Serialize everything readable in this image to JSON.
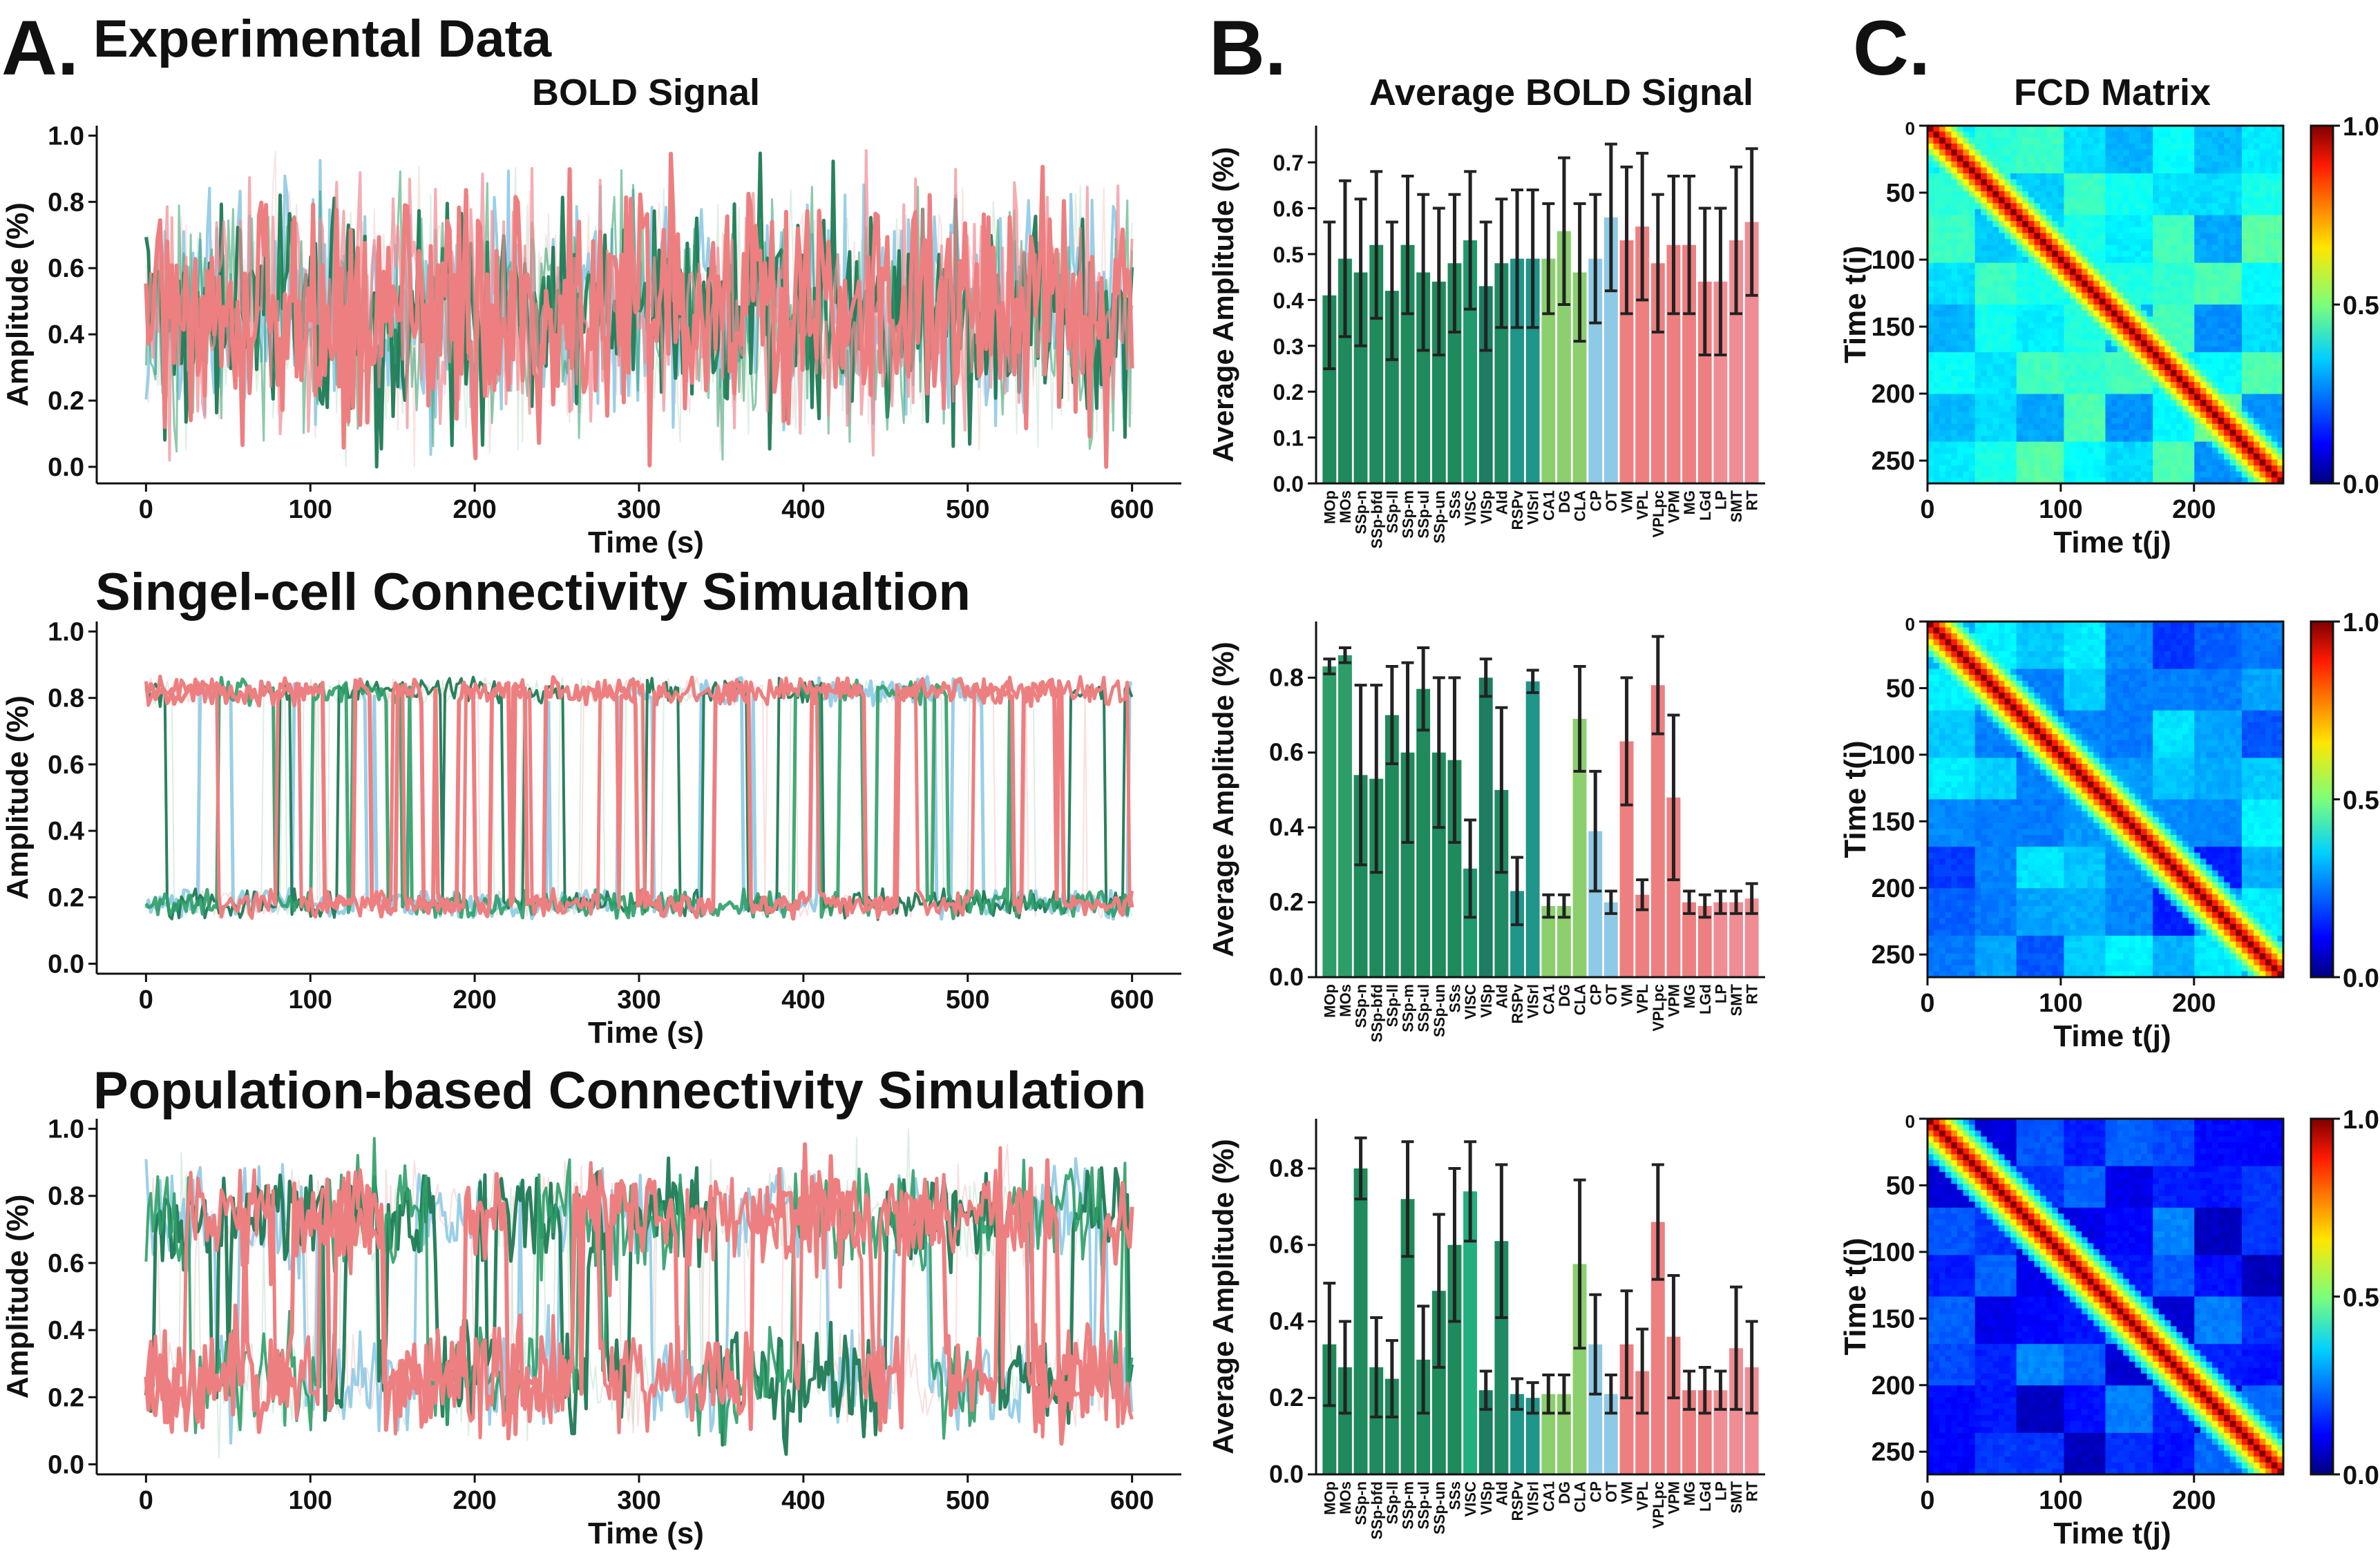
{
  "panel_letters": {
    "a": "A.",
    "b": "B.",
    "c": "C."
  },
  "row_titles": [
    "Experimental Data",
    "Singel-cell Connectivity Simualtion",
    "Population-based Connectivity Simulation"
  ],
  "column_titles": {
    "bold": "BOLD Signal",
    "avg": "Average BOLD Signal",
    "fcd": "FCD Matrix"
  },
  "colors": {
    "dark_green": "#1d7a55",
    "green": "#2e9e68",
    "teal": "#20958a",
    "light_green": "#8ccf6e",
    "light_blue": "#8ecae6",
    "salmon": "#ee7f80",
    "pink": "#f08c93"
  },
  "chart_data": [
    {
      "type": "line",
      "panel": "A",
      "row": 0,
      "title": "BOLD Signal",
      "xlabel": "Time (s)",
      "ylabel": "Amplitude (%)",
      "xlim": [
        -30,
        630
      ],
      "ylim": [
        -0.05,
        1.03
      ],
      "xticks": [
        0,
        100,
        200,
        300,
        400,
        500,
        600
      ],
      "yticks": [
        0.0,
        0.2,
        0.4,
        0.6,
        0.8,
        1.0
      ],
      "signal_model": {
        "kind": "noisy",
        "center": 0.47,
        "spread": 0.16,
        "low": 0.0,
        "high": 1.0
      },
      "series": [
        {
          "color": "#f4c0c0",
          "opacity": 0.45,
          "width": 2
        },
        {
          "color": "#bfe0cc",
          "opacity": 0.5,
          "width": 2
        },
        {
          "color": "#8ecae6",
          "opacity": 0.9,
          "width": 4
        },
        {
          "color": "#1d7a55",
          "opacity": 0.95,
          "width": 5
        },
        {
          "color": "#2e9e68",
          "opacity": 0.55,
          "width": 3
        },
        {
          "color": "#f08c93",
          "opacity": 0.7,
          "width": 4
        },
        {
          "color": "#ee7f80",
          "opacity": 1.0,
          "width": 6
        }
      ]
    },
    {
      "type": "bar",
      "panel": "B",
      "row": 0,
      "title": "Average BOLD Signal",
      "ylabel": "Average Amplitude (%)",
      "ylim": [
        0,
        0.78
      ],
      "yticks": [
        0.0,
        0.1,
        0.2,
        0.3,
        0.4,
        0.5,
        0.6,
        0.7
      ],
      "categories": [
        "MOp",
        "MOs",
        "SSp-n",
        "SSp-bfd",
        "SSp-ll",
        "SSp-m",
        "SSp-ul",
        "SSp-un",
        "SSs",
        "VISC",
        "VISp",
        "AId",
        "RSPv",
        "VISrl",
        "CA1",
        "DG",
        "CLA",
        "CP",
        "OT",
        "VM",
        "VPL",
        "VPLpc",
        "VPM",
        "MG",
        "LGd",
        "LP",
        "SMT",
        "RT"
      ],
      "values": [
        0.41,
        0.49,
        0.46,
        0.52,
        0.42,
        0.52,
        0.46,
        0.44,
        0.48,
        0.53,
        0.43,
        0.48,
        0.49,
        0.49,
        0.49,
        0.55,
        0.46,
        0.49,
        0.58,
        0.53,
        0.56,
        0.48,
        0.52,
        0.52,
        0.44,
        0.44,
        0.53,
        0.57
      ],
      "errors": [
        0.16,
        0.17,
        0.16,
        0.16,
        0.15,
        0.15,
        0.17,
        0.16,
        0.15,
        0.15,
        0.14,
        0.14,
        0.15,
        0.15,
        0.12,
        0.16,
        0.15,
        0.14,
        0.16,
        0.16,
        0.16,
        0.15,
        0.15,
        0.15,
        0.16,
        0.16,
        0.16,
        0.16
      ],
      "colors": [
        "#1f8a5b",
        "#1f8a5b",
        "#1f8a5b",
        "#1f8a5b",
        "#1f8a5b",
        "#1f8a5b",
        "#1f8a5b",
        "#1f8a5b",
        "#1f8a5b",
        "#1e9a6c",
        "#1d7d61",
        "#1f8a63",
        "#20958a",
        "#20958a",
        "#8ccf6e",
        "#8ccf6e",
        "#8ccf6e",
        "#8ecae6",
        "#8ecae6",
        "#ee7f80",
        "#ee7f80",
        "#ee7f80",
        "#ee7f80",
        "#ee7f80",
        "#ee7f80",
        "#f08c93",
        "#f08c93",
        "#f08c93"
      ]
    },
    {
      "type": "heatmap",
      "panel": "C",
      "row": 0,
      "title": "FCD Matrix",
      "xlabel": "Time t(j)",
      "ylabel": "Time t(i)",
      "xlim": [
        0,
        267
      ],
      "ylim": [
        267,
        0
      ],
      "xticks": [
        0,
        100,
        200
      ],
      "yticks": [
        0,
        50,
        100,
        150,
        200,
        250
      ],
      "colorbar": {
        "min": 0.0,
        "max": 1.0,
        "ticks": [
          "0.0",
          "0.5",
          "1.0"
        ],
        "colormap": "jet"
      },
      "off_diagonal_level": 0.36
    },
    {
      "type": "line",
      "panel": "A",
      "row": 1,
      "title": "Singel-cell Connectivity Simualtion",
      "xlabel": "Time (s)",
      "ylabel": "Amplitude (%)",
      "xlim": [
        -30,
        630
      ],
      "ylim": [
        -0.03,
        1.03
      ],
      "xticks": [
        0,
        100,
        200,
        300,
        400,
        500,
        600
      ],
      "yticks": [
        0.0,
        0.2,
        0.4,
        0.6,
        0.8,
        1.0
      ],
      "signal_model": {
        "kind": "bistable",
        "high_level": 0.82,
        "low_level": 0.18,
        "spread": 0.03,
        "low": 0.0,
        "high": 1.0
      },
      "series": [
        {
          "color": "#f4c0c0",
          "opacity": 0.5,
          "width": 2
        },
        {
          "color": "#bfe0cc",
          "opacity": 0.55,
          "width": 2
        },
        {
          "color": "#8ecae6",
          "opacity": 0.9,
          "width": 5
        },
        {
          "color": "#1d7a55",
          "opacity": 0.95,
          "width": 4
        },
        {
          "color": "#2e9e68",
          "opacity": 0.9,
          "width": 5
        },
        {
          "color": "#ee7f80",
          "opacity": 1.0,
          "width": 6
        },
        {
          "color": "#ee7f80",
          "opacity": 1.0,
          "width": 5
        }
      ]
    },
    {
      "type": "bar",
      "panel": "B",
      "row": 1,
      "ylabel": "Average Amplitude (%)",
      "ylim": [
        0,
        0.95
      ],
      "yticks": [
        0.0,
        0.2,
        0.4,
        0.6,
        0.8
      ],
      "categories": [
        "MOp",
        "MOs",
        "SSp-n",
        "SSp-bfd",
        "SSp-ll",
        "SSp-m",
        "SSp-ul",
        "SSp-un",
        "SSs",
        "VISC",
        "VISp",
        "AId",
        "RSPv",
        "VISrl",
        "CA1",
        "DG",
        "CLA",
        "CP",
        "OT",
        "VM",
        "VPL",
        "VPLpc",
        "VPM",
        "MG",
        "LGd",
        "LP",
        "SMT",
        "RT"
      ],
      "values": [
        0.83,
        0.86,
        0.54,
        0.53,
        0.7,
        0.6,
        0.77,
        0.6,
        0.58,
        0.29,
        0.8,
        0.5,
        0.23,
        0.79,
        0.19,
        0.19,
        0.69,
        0.39,
        0.2,
        0.63,
        0.22,
        0.78,
        0.48,
        0.2,
        0.19,
        0.2,
        0.2,
        0.21
      ],
      "errors": [
        0.02,
        0.02,
        0.24,
        0.25,
        0.13,
        0.24,
        0.11,
        0.2,
        0.22,
        0.13,
        0.05,
        0.22,
        0.09,
        0.03,
        0.03,
        0.03,
        0.14,
        0.16,
        0.03,
        0.17,
        0.04,
        0.13,
        0.22,
        0.03,
        0.03,
        0.03,
        0.03,
        0.04
      ],
      "colors": [
        "#2e9e68",
        "#2e9e68",
        "#1f8a5b",
        "#1f8a5b",
        "#1f8a5b",
        "#1f8a5b",
        "#1f8a5b",
        "#1f8a5b",
        "#1f8a5b",
        "#1e9a6c",
        "#1d7d61",
        "#1f8a63",
        "#20958a",
        "#20958a",
        "#8ccf6e",
        "#8ccf6e",
        "#8ccf6e",
        "#8ecae6",
        "#8ecae6",
        "#ee7f80",
        "#ee7f80",
        "#ee7f80",
        "#ee7f80",
        "#ee7f80",
        "#ee7f80",
        "#f08c93",
        "#f08c93",
        "#f08c93"
      ]
    },
    {
      "type": "heatmap",
      "panel": "C",
      "row": 1,
      "xlabel": "Time t(j)",
      "ylabel": "Time t(i)",
      "xlim": [
        0,
        267
      ],
      "ylim": [
        267,
        0
      ],
      "xticks": [
        0,
        100,
        200
      ],
      "yticks": [
        0,
        50,
        100,
        150,
        200,
        250
      ],
      "colorbar": {
        "min": 0.0,
        "max": 1.0,
        "ticks": [
          "0.0",
          "0.5",
          "1.0"
        ],
        "colormap": "jet"
      },
      "off_diagonal_level": 0.26
    },
    {
      "type": "line",
      "panel": "A",
      "row": 2,
      "title": "Population-based Connectivity Simulation",
      "xlabel": "Time (s)",
      "ylabel": "Amplitude (%)",
      "xlim": [
        -30,
        630
      ],
      "ylim": [
        -0.03,
        1.03
      ],
      "xticks": [
        0,
        100,
        200,
        300,
        400,
        500,
        600
      ],
      "yticks": [
        0.0,
        0.2,
        0.4,
        0.6,
        0.8,
        1.0
      ],
      "signal_model": {
        "kind": "noisy_bistable",
        "high_level": 0.74,
        "low_level": 0.25,
        "spread": 0.08,
        "low": 0.0,
        "high": 1.0
      },
      "series": [
        {
          "color": "#f4c0c0",
          "opacity": 0.5,
          "width": 2
        },
        {
          "color": "#bfe0cc",
          "opacity": 0.55,
          "width": 2
        },
        {
          "color": "#8ecae6",
          "opacity": 0.9,
          "width": 4
        },
        {
          "color": "#1d7a55",
          "opacity": 0.95,
          "width": 5
        },
        {
          "color": "#2e9e68",
          "opacity": 0.9,
          "width": 4
        },
        {
          "color": "#ee7f80",
          "opacity": 1.0,
          "width": 6
        },
        {
          "color": "#ee7f80",
          "opacity": 1.0,
          "width": 5
        }
      ]
    },
    {
      "type": "bar",
      "panel": "B",
      "row": 2,
      "ylabel": "Average Amplitude (%)",
      "ylim": [
        0,
        0.93
      ],
      "yticks": [
        0.0,
        0.2,
        0.4,
        0.6,
        0.8
      ],
      "categories": [
        "MOp",
        "MOs",
        "SSp-n",
        "SSp-bfd",
        "SSp-ll",
        "SSp-m",
        "SSp-ul",
        "SSp-un",
        "SSs",
        "VISC",
        "VISp",
        "AId",
        "RSPv",
        "VISrl",
        "CA1",
        "DG",
        "CLA",
        "CP",
        "OT",
        "VM",
        "VPL",
        "VPLpc",
        "VPM",
        "MG",
        "LGd",
        "LP",
        "SMT",
        "RT"
      ],
      "values": [
        0.34,
        0.28,
        0.8,
        0.28,
        0.25,
        0.72,
        0.3,
        0.48,
        0.6,
        0.74,
        0.22,
        0.61,
        0.21,
        0.2,
        0.21,
        0.21,
        0.55,
        0.34,
        0.21,
        0.34,
        0.27,
        0.66,
        0.36,
        0.22,
        0.22,
        0.22,
        0.33,
        0.28
      ],
      "errors": [
        0.16,
        0.12,
        0.08,
        0.13,
        0.1,
        0.15,
        0.14,
        0.2,
        0.2,
        0.13,
        0.05,
        0.2,
        0.04,
        0.04,
        0.05,
        0.05,
        0.22,
        0.13,
        0.05,
        0.14,
        0.11,
        0.15,
        0.16,
        0.05,
        0.06,
        0.05,
        0.16,
        0.12
      ],
      "colors": [
        "#1f8a5b",
        "#1f8a5b",
        "#1f8a5b",
        "#1f8a5b",
        "#1f8a5b",
        "#1f8a5b",
        "#1f8a5b",
        "#1f8a5b",
        "#1f8a5b",
        "#22b07e",
        "#1d7d61",
        "#1f8a63",
        "#20958a",
        "#20958a",
        "#8ccf6e",
        "#8ccf6e",
        "#8ccf6e",
        "#8ecae6",
        "#8ecae6",
        "#ee7f80",
        "#ee7f80",
        "#ee7f80",
        "#ee7f80",
        "#ee7f80",
        "#ee7f80",
        "#f08c93",
        "#f08c93",
        "#f08c93"
      ]
    },
    {
      "type": "heatmap",
      "panel": "C",
      "row": 2,
      "xlabel": "Time t(j)",
      "ylabel": "Time t(i)",
      "xlim": [
        0,
        267
      ],
      "ylim": [
        267,
        0
      ],
      "xticks": [
        0,
        100,
        200
      ],
      "yticks": [
        0,
        50,
        100,
        150,
        200,
        250
      ],
      "colorbar": {
        "min": 0.0,
        "max": 1.0,
        "ticks": [
          "0.0",
          "0.5",
          "1.0"
        ],
        "colormap": "jet"
      },
      "off_diagonal_level": 0.16
    }
  ]
}
